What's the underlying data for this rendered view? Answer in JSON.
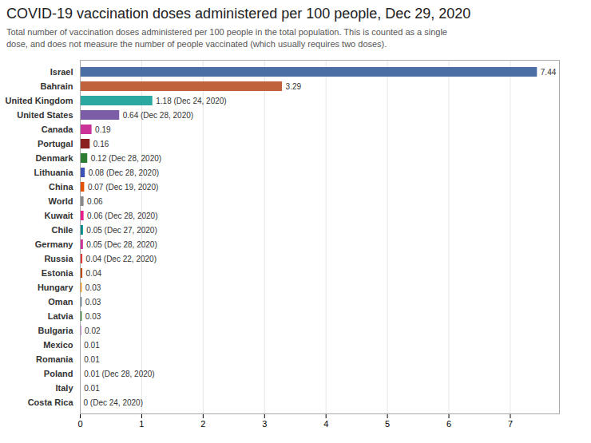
{
  "chart_data": {
    "type": "bar",
    "orientation": "horizontal",
    "title": "COVID-19 vaccination doses administered per 100 people, Dec 29, 2020",
    "subtitle": "Total number of vaccination doses administered per 100 people in the total population. This is counted as a single\ndose, and does not measure the number of people vaccinated (which usually requires two doses).",
    "categories": [
      "Israel",
      "Bahrain",
      "United Kingdom",
      "United States",
      "Canada",
      "Portugal",
      "Denmark",
      "Lithuania",
      "China",
      "World",
      "Kuwait",
      "Chile",
      "Germany",
      "Russia",
      "Estonia",
      "Hungary",
      "Oman",
      "Latvia",
      "Bulgaria",
      "Mexico",
      "Romania",
      "Poland",
      "Italy",
      "Costa Rica"
    ],
    "values": [
      7.44,
      3.29,
      1.18,
      0.64,
      0.19,
      0.16,
      0.12,
      0.08,
      0.07,
      0.06,
      0.06,
      0.05,
      0.05,
      0.04,
      0.04,
      0.03,
      0.03,
      0.03,
      0.02,
      0.01,
      0.01,
      0.01,
      0.01,
      0
    ],
    "value_labels": [
      "7.44",
      "3.29",
      "1.18 (Dec 24, 2020)",
      "0.64 (Dec 28, 2020)",
      "0.19",
      "0.16",
      "0.12 (Dec 28, 2020)",
      "0.08 (Dec 28, 2020)",
      "0.07 (Dec 19, 2020)",
      "0.06",
      "0.06 (Dec 28, 2020)",
      "0.05 (Dec 27, 2020)",
      "0.05 (Dec 28, 2020)",
      "0.04 (Dec 22, 2020)",
      "0.04",
      "0.03",
      "0.03",
      "0.03",
      "0.02",
      "0.01",
      "0.01",
      "0.01 (Dec 28, 2020)",
      "0.01",
      "0 (Dec 24, 2020)"
    ],
    "colors": [
      "#4a6fa5",
      "#c0623b",
      "#2ba8a0",
      "#7b5ea7",
      "#cc3399",
      "#8b2020",
      "#2e7d32",
      "#3f51b5",
      "#e65100",
      "#888888",
      "#e91e8c",
      "#008b8b",
      "#cc3399",
      "#e53935",
      "#bf4a00",
      "#ff8f00",
      "#607d8b",
      "#2e7d32",
      "#9c27b0",
      "#607d8b",
      "#607d8b",
      "#607d8b",
      "#607d8b",
      "#607d8b"
    ],
    "xlim": [
      0,
      7.8
    ],
    "xticks": [
      0,
      1,
      2,
      3,
      4,
      5,
      6,
      7
    ],
    "grid": true,
    "data_labels": true
  }
}
